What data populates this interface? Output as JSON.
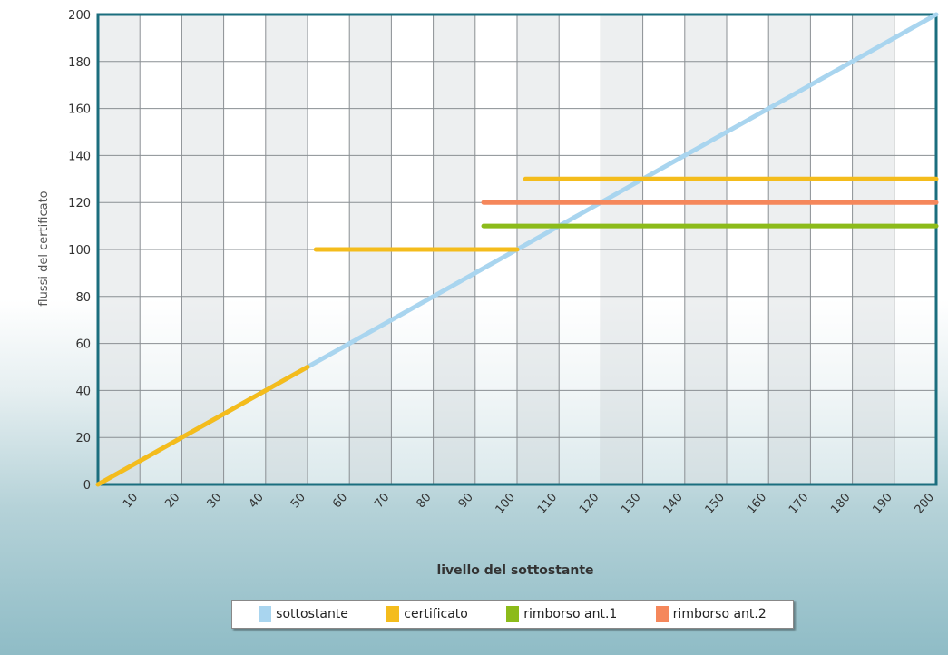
{
  "chart_data": {
    "type": "line",
    "title": "",
    "xlabel": "livello del sottostante",
    "ylabel": "flussi del certificato",
    "xlim": [
      0,
      200
    ],
    "ylim": [
      0,
      200
    ],
    "x_ticks": [
      10,
      20,
      30,
      40,
      50,
      60,
      70,
      80,
      90,
      100,
      110,
      120,
      130,
      140,
      150,
      160,
      170,
      180,
      190,
      200
    ],
    "y_ticks": [
      0,
      20,
      40,
      60,
      80,
      100,
      120,
      140,
      160,
      180,
      200
    ],
    "grid": true,
    "legend_position": "bottom",
    "series": [
      {
        "name": "sottostante",
        "color": "#a9d5ef",
        "segments": [
          [
            [
              0,
              0
            ],
            [
              200,
              200
            ]
          ]
        ]
      },
      {
        "name": "certificato",
        "color": "#f4bc1c",
        "segments": [
          [
            [
              0,
              0
            ],
            [
              50,
              50
            ]
          ],
          [
            [
              52,
              100
            ],
            [
              100,
              100
            ]
          ],
          [
            [
              102,
              130
            ],
            [
              200,
              130
            ]
          ]
        ]
      },
      {
        "name": "rimborso ant.1",
        "color": "#8cbb1a",
        "segments": [
          [
            [
              92,
              110
            ],
            [
              200,
              110
            ]
          ]
        ]
      },
      {
        "name": "rimborso ant.2",
        "color": "#f5875b",
        "segments": [
          [
            [
              92,
              120
            ],
            [
              200,
              120
            ]
          ]
        ]
      }
    ]
  }
}
